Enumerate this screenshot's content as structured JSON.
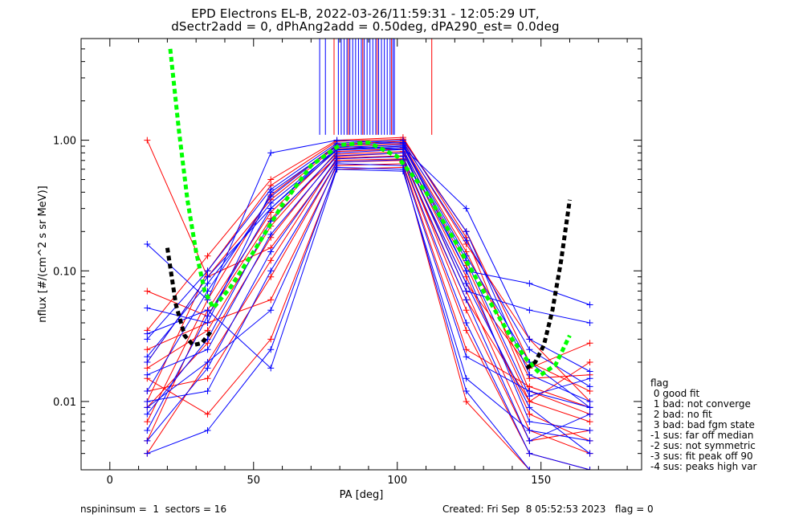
{
  "title_line1": "EPD Electrons EL-B, 2022-03-26/11:59:31 - 12:05:29 UT,",
  "title_line2": "dSectr2add = 0, dPhAng2add = 0.50deg, dPA290_est=    0.0deg",
  "legend": {
    "title": "flag",
    "items": [
      " 0 good fit",
      " 1 bad: not converge",
      " 2 bad: no fit",
      " 3 bad: bad fgm state",
      "-1 sus: far off median",
      "-2 sus: not symmetric",
      "-3 sus: fit peak off 90",
      "-4 sus: peaks high var"
    ]
  },
  "footer": {
    "left": "nspininsum =  1  sectors = 16",
    "right": "Created: Fri Sep  8 05:52:53 2023   flag = 0"
  },
  "colors": {
    "red": "#ff0000",
    "blue": "#0000ff",
    "green": "#00ff00",
    "black": "#000000"
  },
  "chart_data": {
    "type": "scatter",
    "xlabel": "PA [deg]",
    "ylabel": "nflux [#/(cm^2 s sr MeV)]",
    "xlim": [
      -10,
      185
    ],
    "ylim": [
      0.003,
      6.0
    ],
    "yscale": "log",
    "xticks": [
      0,
      50,
      100,
      150
    ],
    "yticks": [
      {
        "value": 0.01,
        "label": "0.01"
      },
      {
        "value": 0.1,
        "label": "0.10"
      },
      {
        "value": 1.0,
        "label": "1.00"
      }
    ],
    "pa_bins": [
      13,
      34,
      56,
      79,
      102,
      124,
      146,
      167
    ],
    "series": [
      {
        "color": "red",
        "profiles": [
          [
            0.035,
            0.13,
            0.5,
            1.0,
            1.05,
            0.18,
            0.012,
            0.008
          ],
          [
            0.01,
            0.1,
            0.45,
            0.98,
            1.02,
            0.2,
            0.02,
            0.012
          ],
          [
            0.007,
            0.06,
            0.38,
            0.93,
            0.98,
            0.16,
            0.03,
            0.01
          ],
          [
            0.02,
            0.09,
            0.35,
            0.9,
            0.94,
            0.14,
            0.015,
            0.016
          ],
          [
            0.005,
            0.05,
            0.28,
            0.86,
            0.9,
            0.11,
            0.01,
            0.02
          ],
          [
            0.018,
            0.035,
            0.22,
            0.82,
            0.86,
            0.09,
            0.008,
            0.005
          ],
          [
            0.009,
            0.028,
            0.18,
            0.78,
            0.82,
            0.07,
            0.006,
            0.004
          ],
          [
            0.004,
            0.02,
            0.12,
            0.73,
            0.76,
            0.05,
            0.005,
            0.006
          ],
          [
            0.012,
            0.015,
            0.09,
            0.68,
            0.7,
            0.035,
            0.004,
            0.003
          ],
          [
            0.025,
            0.04,
            0.06,
            0.64,
            0.66,
            0.025,
            0.013,
            0.009
          ],
          [
            1.0,
            0.09,
            0.15,
            0.7,
            0.72,
            0.06,
            0.01,
            0.007
          ],
          [
            0.07,
            0.045,
            0.25,
            0.75,
            0.8,
            0.08,
            0.018,
            0.028
          ],
          [
            0.015,
            0.008,
            0.03,
            0.6,
            0.62,
            0.01,
            0.003,
            0.002
          ]
        ]
      },
      {
        "color": "blue",
        "profiles": [
          [
            0.03,
            0.1,
            0.42,
            0.95,
            1.0,
            0.2,
            0.016,
            0.01
          ],
          [
            0.012,
            0.07,
            0.37,
            0.92,
            0.96,
            0.17,
            0.025,
            0.013
          ],
          [
            0.006,
            0.045,
            0.3,
            0.88,
            0.92,
            0.13,
            0.02,
            0.009
          ],
          [
            0.022,
            0.08,
            0.33,
            0.85,
            0.9,
            0.12,
            0.011,
            0.015
          ],
          [
            0.008,
            0.03,
            0.24,
            0.8,
            0.85,
            0.1,
            0.007,
            0.006
          ],
          [
            0.016,
            0.025,
            0.19,
            0.76,
            0.8,
            0.08,
            0.009,
            0.004
          ],
          [
            0.005,
            0.018,
            0.14,
            0.72,
            0.75,
            0.06,
            0.005,
            0.008
          ],
          [
            0.01,
            0.012,
            0.1,
            0.68,
            0.71,
            0.04,
            0.004,
            0.003
          ],
          [
            0.16,
            0.06,
            0.8,
            1.0,
            0.95,
            0.1,
            0.08,
            0.055
          ],
          [
            0.052,
            0.04,
            0.4,
            0.9,
            0.85,
            0.07,
            0.05,
            0.04
          ],
          [
            0.033,
            0.05,
            0.018,
            0.6,
            0.58,
            0.015,
            0.006,
            0.005
          ],
          [
            0.02,
            0.09,
            0.3,
            0.84,
            0.88,
            0.3,
            0.03,
            0.017
          ],
          [
            0.009,
            0.02,
            0.05,
            0.66,
            0.64,
            0.022,
            0.012,
            0.009
          ],
          [
            0.004,
            0.006,
            0.025,
            0.62,
            0.6,
            0.012,
            0.003,
            0.002
          ]
        ]
      }
    ],
    "vertical_spikes": [
      {
        "color": "blue",
        "x": [
          73,
          75,
          79.5,
          80.5,
          81.5,
          82.5,
          83.5,
          84.5,
          85.5,
          86.5,
          87.5,
          88.5,
          89.5,
          90.5,
          91.5,
          92.5,
          93.5,
          94.5,
          95.5,
          96.5,
          97.5,
          98.5,
          99
        ],
        "y_from": 1.1
      },
      {
        "color": "red",
        "x": [
          78,
          83,
          88,
          93,
          98,
          112
        ],
        "y_from": 1.1
      }
    ],
    "fit_curves": [
      {
        "color": "green",
        "x": [
          21,
          24,
          27,
          30,
          33,
          36,
          42,
          50,
          60,
          70,
          80,
          90,
          100,
          110,
          120,
          130,
          140,
          145,
          150,
          155,
          160
        ],
        "y": [
          5.0,
          1.2,
          0.35,
          0.14,
          0.07,
          0.052,
          0.075,
          0.14,
          0.32,
          0.64,
          0.92,
          0.96,
          0.75,
          0.4,
          0.17,
          0.07,
          0.03,
          0.021,
          0.016,
          0.019,
          0.032
        ]
      },
      {
        "color": "black",
        "x": [
          20,
          23,
          26,
          29,
          32,
          35,
          145,
          148,
          151,
          154,
          157,
          160
        ],
        "y": [
          0.15,
          0.055,
          0.032,
          0.027,
          0.028,
          0.034,
          0.018,
          0.02,
          0.027,
          0.05,
          0.12,
          0.35
        ]
      }
    ]
  }
}
